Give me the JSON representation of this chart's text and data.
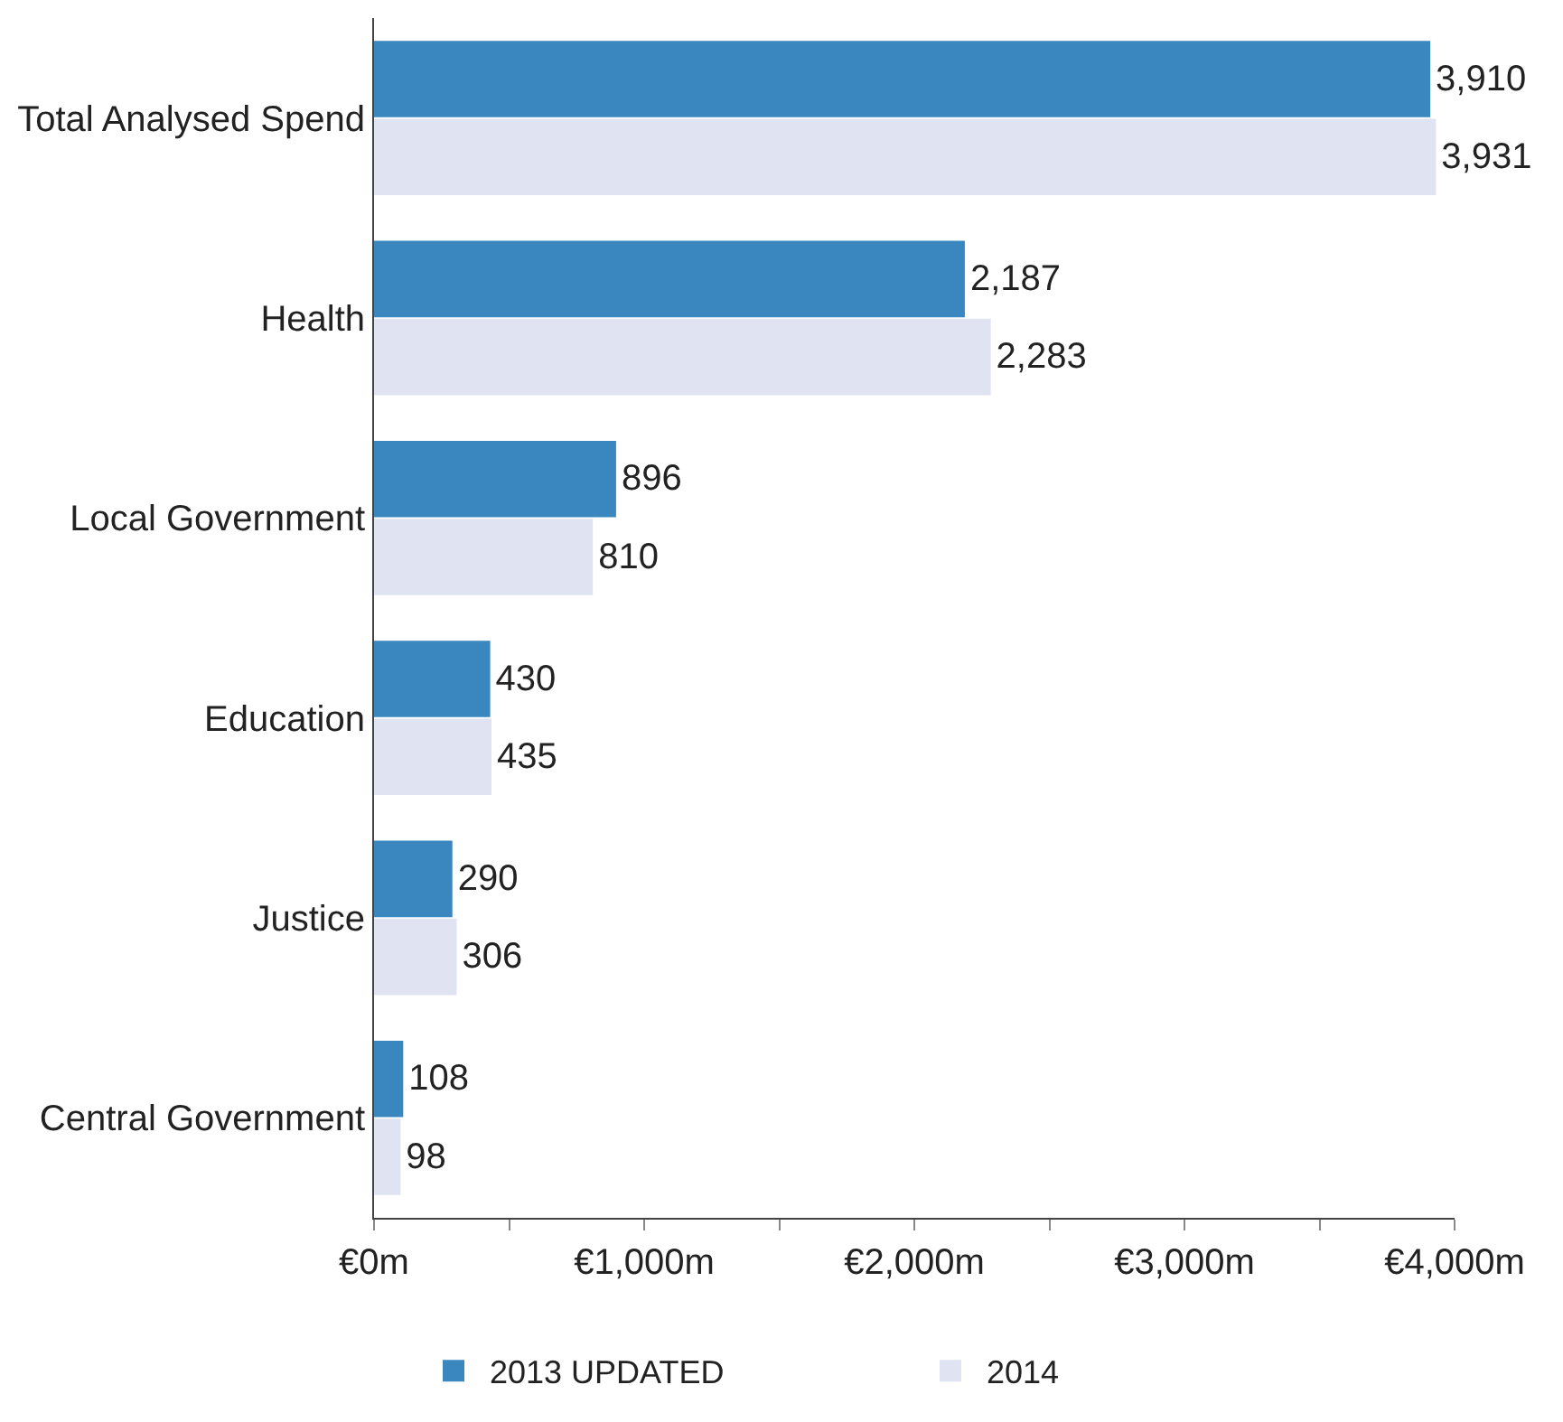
{
  "chart_data": {
    "type": "bar",
    "orientation": "horizontal",
    "categories": [
      "Total Analysed Spend",
      "Health",
      "Local Government",
      "Education",
      "Justice",
      "Central Government"
    ],
    "series": [
      {
        "name": "2013 UPDATED",
        "color": "#3a87c0",
        "values": [
          3910,
          2187,
          896,
          430,
          290,
          108
        ],
        "value_labels": [
          "3,910",
          "2,187",
          "896",
          "430",
          "290",
          "108"
        ]
      },
      {
        "name": "2014",
        "color": "#dfe3f2",
        "values": [
          3931,
          2283,
          810,
          435,
          306,
          98
        ],
        "value_labels": [
          "3,931",
          "2,283",
          "810",
          "435",
          "306",
          "98"
        ]
      }
    ],
    "xlim": [
      0,
      4000
    ],
    "xticks": [
      {
        "value": 0,
        "label": "€0m"
      },
      {
        "value": 500,
        "label": null
      },
      {
        "value": 1000,
        "label": "€1,000m"
      },
      {
        "value": 1500,
        "label": null
      },
      {
        "value": 2000,
        "label": "€2,000m"
      },
      {
        "value": 2500,
        "label": null
      },
      {
        "value": 3000,
        "label": "€3,000m"
      },
      {
        "value": 3500,
        "label": null
      },
      {
        "value": 4000,
        "label": "€4,000m"
      }
    ],
    "legend": "bottom"
  }
}
